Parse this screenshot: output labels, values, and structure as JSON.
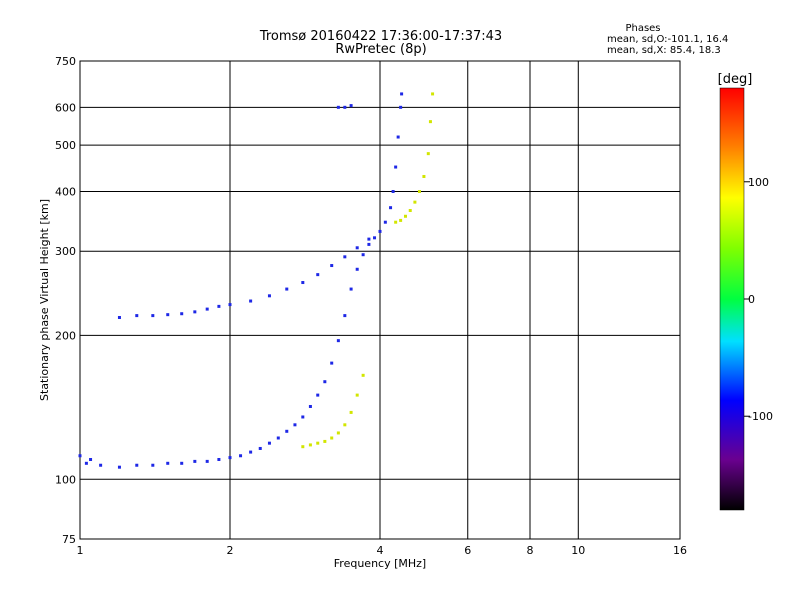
{
  "chart_data": {
    "type": "scatter",
    "title": "Tromsø 20160422 17:36:00-17:37:43",
    "subtitle": "RwPretec (8p)",
    "xlabel": "Frequency [MHz]",
    "ylabel": "Stationary phase Virtual Height [km]",
    "x_scale": "log",
    "y_scale": "log",
    "xlim": [
      1,
      16
    ],
    "ylim": [
      75,
      750
    ],
    "x_ticks": [
      "1",
      "2",
      "4",
      "6",
      "8",
      "10",
      "16"
    ],
    "y_ticks": [
      "75",
      "100",
      "200",
      "300",
      "400",
      "500",
      "600",
      "750"
    ],
    "grid": true,
    "stats": {
      "heading": "Phases",
      "line_o": "mean, sd,O:-101.1, 16.4",
      "line_x": "mean, sd,X:  85.4, 18.3"
    },
    "colorbar": {
      "label": "[deg]",
      "range": [
        -180,
        180
      ],
      "tick_labels": [
        "100",
        "0",
        "-100"
      ]
    },
    "colors": {
      "o_mode": "#1e28e6",
      "x_mode": "#d2e600"
    },
    "series": [
      {
        "mode": "O",
        "phase": -101,
        "points": [
          [
            1.0,
            112
          ],
          [
            1.03,
            108
          ],
          [
            1.05,
            110
          ],
          [
            1.1,
            107
          ],
          [
            1.2,
            106
          ],
          [
            1.3,
            107
          ],
          [
            1.4,
            107
          ],
          [
            1.5,
            108
          ],
          [
            1.6,
            108
          ],
          [
            1.7,
            109
          ],
          [
            1.8,
            109
          ],
          [
            1.9,
            110
          ],
          [
            2.0,
            111
          ],
          [
            2.1,
            112
          ],
          [
            2.2,
            114
          ],
          [
            2.3,
            116
          ],
          [
            2.4,
            119
          ],
          [
            2.5,
            122
          ],
          [
            2.6,
            126
          ],
          [
            2.7,
            130
          ],
          [
            2.8,
            135
          ],
          [
            2.9,
            142
          ],
          [
            3.0,
            150
          ],
          [
            3.1,
            160
          ],
          [
            3.2,
            175
          ],
          [
            3.3,
            195
          ],
          [
            3.4,
            220
          ],
          [
            3.5,
            250
          ],
          [
            3.6,
            275
          ],
          [
            3.7,
            295
          ],
          [
            3.8,
            310
          ],
          [
            3.9,
            320
          ],
          [
            4.0,
            330
          ],
          [
            4.1,
            345
          ],
          [
            4.2,
            370
          ],
          [
            4.25,
            400
          ],
          [
            4.3,
            450
          ],
          [
            4.35,
            520
          ],
          [
            4.4,
            600
          ],
          [
            4.42,
            640
          ],
          [
            1.2,
            218
          ],
          [
            1.3,
            220
          ],
          [
            1.4,
            220
          ],
          [
            1.5,
            221
          ],
          [
            1.6,
            222
          ],
          [
            1.7,
            224
          ],
          [
            1.8,
            227
          ],
          [
            1.9,
            230
          ],
          [
            2.0,
            232
          ],
          [
            2.2,
            236
          ],
          [
            2.4,
            242
          ],
          [
            2.6,
            250
          ],
          [
            2.8,
            258
          ],
          [
            3.0,
            268
          ],
          [
            3.2,
            280
          ],
          [
            3.4,
            292
          ],
          [
            3.6,
            305
          ],
          [
            3.8,
            318
          ],
          [
            3.3,
            600
          ],
          [
            3.4,
            600
          ],
          [
            3.5,
            605
          ]
        ]
      },
      {
        "mode": "X",
        "phase": 85,
        "points": [
          [
            2.8,
            117
          ],
          [
            2.9,
            118
          ],
          [
            3.0,
            119
          ],
          [
            3.1,
            120
          ],
          [
            3.2,
            122
          ],
          [
            3.3,
            125
          ],
          [
            3.4,
            130
          ],
          [
            3.5,
            138
          ],
          [
            3.6,
            150
          ],
          [
            3.7,
            165
          ],
          [
            4.3,
            345
          ],
          [
            4.4,
            348
          ],
          [
            4.5,
            355
          ],
          [
            4.6,
            365
          ],
          [
            4.7,
            380
          ],
          [
            4.8,
            400
          ],
          [
            4.9,
            430
          ],
          [
            5.0,
            480
          ],
          [
            5.05,
            560
          ],
          [
            5.1,
            640
          ]
        ]
      }
    ]
  }
}
